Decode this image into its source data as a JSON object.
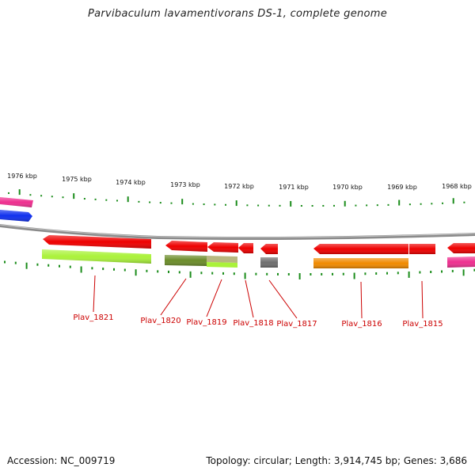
{
  "title": "Parvibaculum lavamentivorans DS-1, complete genome",
  "accession": "Accession: NC_009719",
  "summary": "Topology: circular; Length: 3,914,745 bp; Genes: 3,686",
  "scale_labels": [
    "1976 kbp",
    "1975 kbp",
    "1974 kbp",
    "1973 kbp",
    "1972 kbp",
    "1971 kbp",
    "1970 kbp",
    "1969 kbp",
    "1968 kbp"
  ],
  "gene_labels": [
    "Plav_1821",
    "Plav_1820",
    "Plav_1819",
    "Plav_1818",
    "Plav_1817",
    "Plav_1816",
    "Plav_1815"
  ],
  "colors": {
    "tick": "#1a8c1a",
    "backbone": "#8a8a8a",
    "gene": "#ee0000",
    "label": "#cc0000",
    "yellowgreen": "#aaf23a",
    "olive": "#6b8c2a",
    "khaki": "#b8b880",
    "gray": "#6e6e6e",
    "orange": "#f08a00",
    "magenta": "#ee2f8f",
    "blue": "#1030ee"
  }
}
